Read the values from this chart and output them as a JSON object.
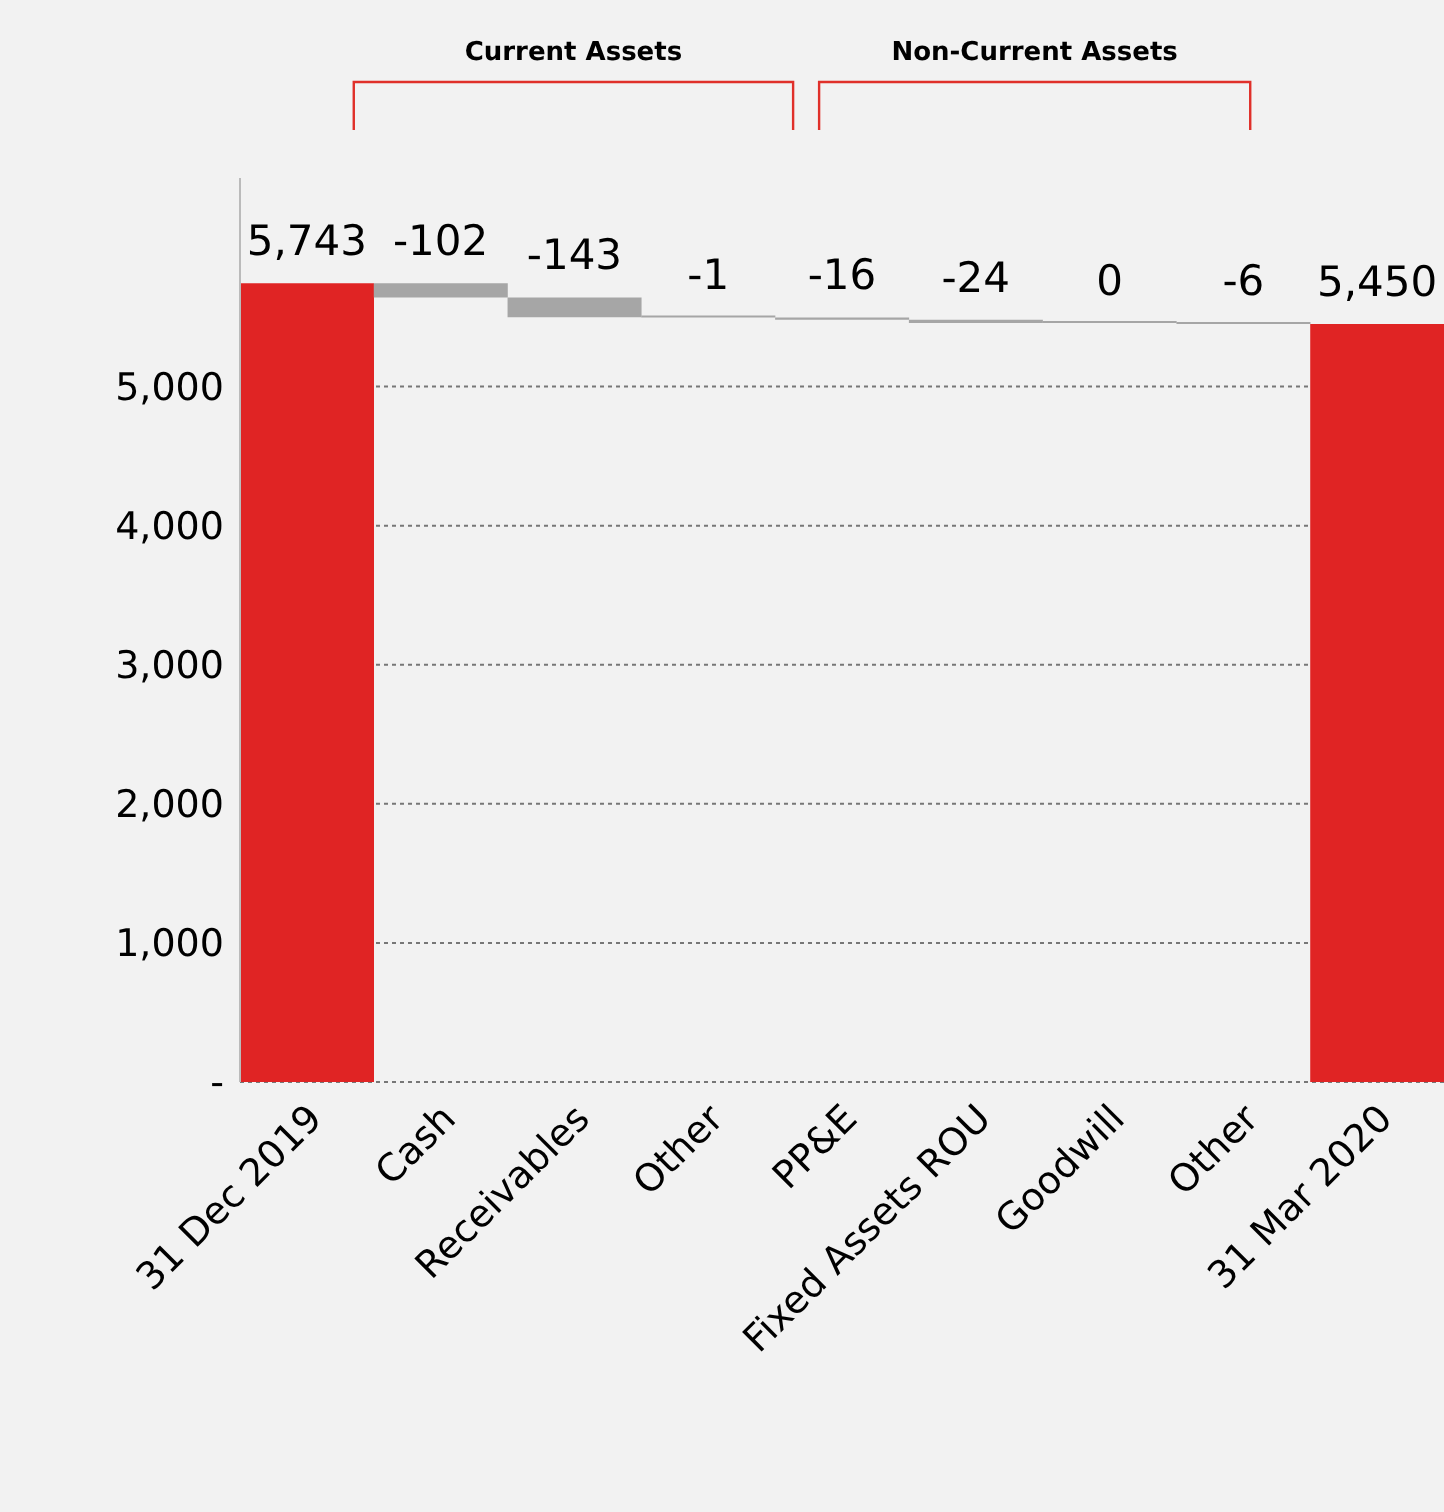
{
  "chart_data": {
    "type": "bar",
    "categories": [
      "31 Dec 2019",
      "Cash",
      "Receivables",
      "Other",
      "PP&E",
      "Fixed Assets ROU",
      "Goodwill",
      "Other",
      "31 Mar 2020"
    ],
    "values": [
      5743,
      -102,
      -143,
      -1,
      -16,
      -24,
      0,
      -6,
      5450
    ],
    "base": [
      0,
      5743,
      5641,
      5498,
      5497,
      5481,
      5457,
      5457,
      0
    ],
    "colors": [
      "#e02424",
      "#a6a6a6",
      "#a6a6a6",
      "#a6a6a6",
      "#a6a6a6",
      "#a6a6a6",
      "#a6a6a6",
      "#a6a6a6",
      "#e02424"
    ],
    "value_labels": [
      "5,743",
      "-102",
      "-143",
      "-1",
      "-16",
      "-24",
      "0",
      "-6",
      "5,450"
    ],
    "annotations": [
      "Current Assets",
      "Non-Current Assets"
    ],
    "ylim": [
      0,
      6500
    ],
    "yticks": [
      {
        "value": 0,
        "label": "-"
      },
      {
        "value": 1000,
        "label": "1,000"
      },
      {
        "value": 2000,
        "label": "2,000"
      },
      {
        "value": 3000,
        "label": "3,000"
      },
      {
        "value": 4000,
        "label": "4,000"
      },
      {
        "value": 5000,
        "label": "5,000"
      }
    ],
    "grid": "y"
  }
}
